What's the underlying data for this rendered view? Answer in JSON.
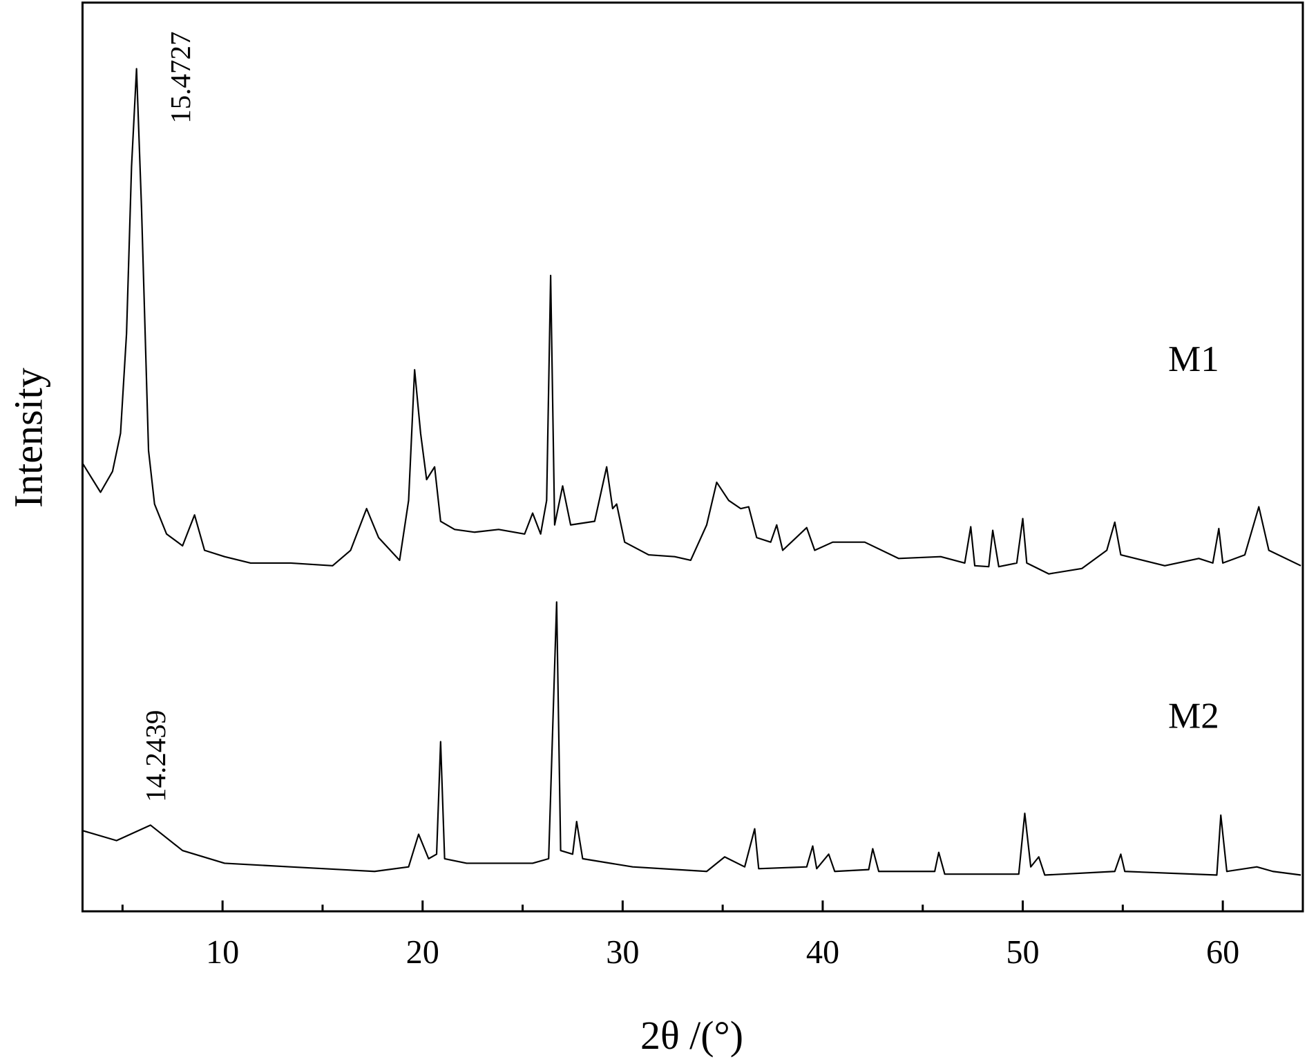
{
  "chart_data": {
    "type": "line",
    "xlabel": "2θ /(°)",
    "ylabel": "Intensity",
    "xlim": [
      3,
      64
    ],
    "ylim": [
      0,
      100
    ],
    "xticks": [
      10,
      20,
      30,
      40,
      50,
      60
    ],
    "xminor_ticks": [
      5,
      15,
      25,
      35,
      45,
      55
    ],
    "annotations": [
      "15.4727",
      "14.2439"
    ],
    "series": [
      {
        "name": "M1",
        "color": "#000000",
        "x": [
          3.0,
          3.9,
          4.5,
          4.9,
          5.2,
          5.45,
          5.7,
          5.95,
          6.3,
          6.6,
          7.2,
          8.0,
          8.6,
          9.1,
          10.1,
          11.4,
          13.4,
          15.5,
          16.4,
          17.2,
          17.8,
          18.85,
          19.3,
          19.6,
          19.9,
          20.2,
          20.6,
          20.9,
          21.6,
          22.6,
          23.8,
          25.1,
          25.5,
          25.9,
          26.2,
          26.4,
          26.6,
          27.0,
          27.4,
          28.6,
          29.2,
          29.5,
          29.7,
          30.1,
          31.3,
          32.6,
          33.4,
          34.2,
          34.7,
          35.3,
          35.9,
          36.3,
          36.7,
          37.4,
          37.7,
          38.0,
          39.2,
          39.6,
          40.5,
          42.1,
          43.8,
          45.9,
          47.1,
          47.4,
          47.6,
          48.3,
          48.5,
          48.8,
          49.7,
          50.0,
          50.2,
          51.3,
          52.96,
          54.2,
          54.6,
          54.9,
          57.1,
          58.8,
          59.5,
          59.8,
          60.0,
          61.1,
          61.8,
          62.3,
          63.9
        ],
        "values": [
          49.4,
          46.2,
          48.5,
          52.7,
          63.7,
          82.1,
          92.9,
          77.5,
          50.8,
          44.9,
          41.6,
          40.3,
          43.7,
          39.8,
          39.1,
          38.4,
          38.4,
          38.1,
          39.8,
          44.4,
          41.2,
          38.7,
          45.3,
          59.7,
          52.7,
          47.6,
          49.0,
          43.0,
          42.1,
          41.8,
          42.1,
          41.6,
          43.9,
          41.6,
          45.3,
          70.1,
          42.6,
          46.9,
          42.6,
          43.0,
          49.0,
          44.4,
          44.9,
          40.7,
          39.3,
          39.1,
          38.7,
          42.6,
          47.3,
          45.3,
          44.4,
          44.6,
          41.2,
          40.7,
          42.6,
          39.8,
          42.3,
          39.8,
          40.7,
          40.7,
          38.9,
          39.1,
          38.4,
          42.4,
          38.1,
          38.0,
          42.0,
          38.0,
          38.4,
          43.3,
          38.4,
          37.2,
          37.8,
          39.8,
          42.9,
          39.3,
          38.1,
          38.9,
          38.4,
          42.2,
          38.4,
          39.3,
          44.6,
          39.8,
          38.1
        ]
      },
      {
        "name": "M2",
        "color": "#000000",
        "x": [
          3.0,
          4.7,
          6.4,
          8.0,
          10.1,
          13.4,
          17.6,
          19.3,
          19.8,
          20.3,
          20.7,
          20.9,
          21.1,
          22.2,
          25.5,
          26.3,
          26.7,
          26.9,
          27.5,
          27.7,
          28.0,
          30.5,
          34.2,
          35.1,
          36.1,
          36.6,
          36.8,
          39.2,
          39.5,
          39.7,
          40.3,
          40.6,
          42.3,
          42.5,
          42.8,
          45.6,
          45.8,
          46.1,
          49.8,
          50.1,
          50.4,
          50.8,
          51.1,
          54.6,
          54.9,
          55.1,
          59.7,
          59.9,
          60.2,
          61.7,
          62.5,
          63.9
        ],
        "values": [
          8.9,
          7.8,
          9.5,
          6.7,
          5.3,
          4.9,
          4.4,
          4.9,
          8.5,
          5.8,
          6.3,
          18.7,
          5.8,
          5.3,
          5.3,
          5.8,
          34.1,
          6.7,
          6.3,
          9.9,
          5.8,
          4.9,
          4.4,
          6.0,
          4.9,
          9.1,
          4.7,
          4.9,
          7.2,
          4.7,
          6.3,
          4.4,
          4.6,
          6.9,
          4.4,
          4.4,
          6.5,
          4.1,
          4.1,
          10.8,
          4.9,
          6.0,
          4.0,
          4.4,
          6.3,
          4.4,
          4.0,
          10.6,
          4.4,
          4.9,
          4.4,
          4.0
        ]
      }
    ]
  }
}
